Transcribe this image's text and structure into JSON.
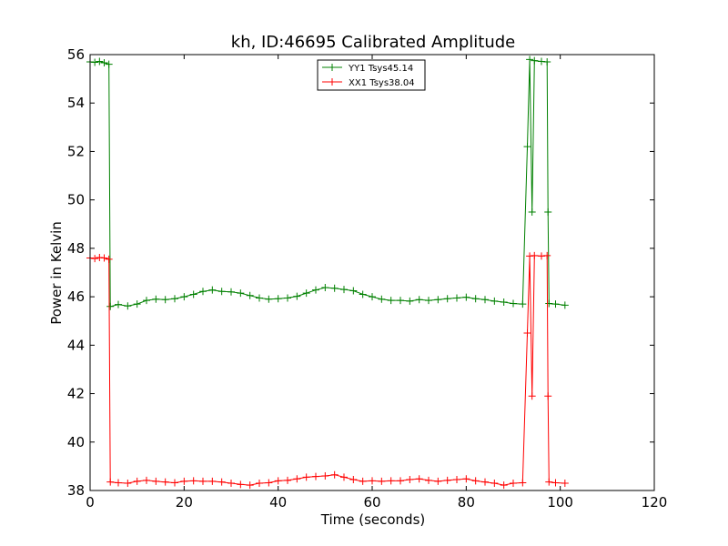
{
  "chart_data": {
    "type": "line",
    "title": "kh, ID:46695 Calibrated Amplitude",
    "xlabel": "Time (seconds)",
    "ylabel": "Power in Kelvin",
    "xlim": [
      0,
      120
    ],
    "ylim": [
      38,
      56
    ],
    "xticks": [
      "0",
      "20",
      "40",
      "60",
      "80",
      "100",
      "120"
    ],
    "yticks": [
      "38",
      "40",
      "42",
      "44",
      "46",
      "48",
      "50",
      "52",
      "54",
      "56"
    ],
    "grid": false,
    "legend_position": "top-center",
    "marker": "+",
    "series": [
      {
        "name": "YY1 Tsys45.14",
        "color": "#008000",
        "points": [
          [
            0,
            55.7
          ],
          [
            1,
            55.68
          ],
          [
            2,
            55.72
          ],
          [
            3,
            55.66
          ],
          [
            4,
            55.6
          ],
          [
            4.3,
            45.6
          ],
          [
            6,
            45.68
          ],
          [
            8,
            45.62
          ],
          [
            10,
            45.7
          ],
          [
            12,
            45.85
          ],
          [
            14,
            45.9
          ],
          [
            16,
            45.88
          ],
          [
            18,
            45.92
          ],
          [
            20,
            46.0
          ],
          [
            22,
            46.1
          ],
          [
            24,
            46.22
          ],
          [
            26,
            46.28
          ],
          [
            28,
            46.22
          ],
          [
            30,
            46.2
          ],
          [
            32,
            46.15
          ],
          [
            34,
            46.05
          ],
          [
            36,
            45.95
          ],
          [
            38,
            45.9
          ],
          [
            40,
            45.92
          ],
          [
            42,
            45.95
          ],
          [
            44,
            46.02
          ],
          [
            46,
            46.15
          ],
          [
            48,
            46.28
          ],
          [
            50,
            46.38
          ],
          [
            52,
            46.35
          ],
          [
            54,
            46.3
          ],
          [
            56,
            46.25
          ],
          [
            58,
            46.1
          ],
          [
            60,
            46.0
          ],
          [
            62,
            45.9
          ],
          [
            64,
            45.85
          ],
          [
            66,
            45.85
          ],
          [
            68,
            45.82
          ],
          [
            70,
            45.88
          ],
          [
            72,
            45.85
          ],
          [
            74,
            45.88
          ],
          [
            76,
            45.92
          ],
          [
            78,
            45.95
          ],
          [
            80,
            45.98
          ],
          [
            82,
            45.92
          ],
          [
            84,
            45.88
          ],
          [
            86,
            45.82
          ],
          [
            88,
            45.78
          ],
          [
            90,
            45.72
          ],
          [
            92,
            45.7
          ],
          [
            93,
            52.2
          ],
          [
            93.5,
            55.8
          ],
          [
            94,
            49.5
          ],
          [
            94.5,
            55.75
          ],
          [
            96,
            55.72
          ],
          [
            97.2,
            55.7
          ],
          [
            97.4,
            49.5
          ],
          [
            97.6,
            45.72
          ],
          [
            99,
            45.7
          ],
          [
            101,
            45.65
          ]
        ]
      },
      {
        "name": "XX1 Tsys38.04",
        "color": "#ff0000",
        "points": [
          [
            0,
            47.6
          ],
          [
            1,
            47.58
          ],
          [
            2,
            47.62
          ],
          [
            3,
            47.6
          ],
          [
            4,
            47.55
          ],
          [
            4.3,
            38.35
          ],
          [
            6,
            38.32
          ],
          [
            8,
            38.3
          ],
          [
            10,
            38.38
          ],
          [
            12,
            38.42
          ],
          [
            14,
            38.38
          ],
          [
            16,
            38.35
          ],
          [
            18,
            38.32
          ],
          [
            20,
            38.38
          ],
          [
            22,
            38.4
          ],
          [
            24,
            38.38
          ],
          [
            26,
            38.38
          ],
          [
            28,
            38.35
          ],
          [
            30,
            38.3
          ],
          [
            32,
            38.25
          ],
          [
            34,
            38.22
          ],
          [
            36,
            38.3
          ],
          [
            38,
            38.32
          ],
          [
            40,
            38.4
          ],
          [
            42,
            38.42
          ],
          [
            44,
            38.48
          ],
          [
            46,
            38.55
          ],
          [
            48,
            38.58
          ],
          [
            50,
            38.6
          ],
          [
            52,
            38.65
          ],
          [
            54,
            38.55
          ],
          [
            56,
            38.45
          ],
          [
            58,
            38.38
          ],
          [
            60,
            38.4
          ],
          [
            62,
            38.38
          ],
          [
            64,
            38.4
          ],
          [
            66,
            38.4
          ],
          [
            68,
            38.45
          ],
          [
            70,
            38.48
          ],
          [
            72,
            38.42
          ],
          [
            74,
            38.38
          ],
          [
            76,
            38.42
          ],
          [
            78,
            38.45
          ],
          [
            80,
            38.48
          ],
          [
            82,
            38.4
          ],
          [
            84,
            38.35
          ],
          [
            86,
            38.3
          ],
          [
            88,
            38.22
          ],
          [
            90,
            38.3
          ],
          [
            92,
            38.32
          ],
          [
            93,
            44.5
          ],
          [
            93.5,
            47.68
          ],
          [
            94,
            41.9
          ],
          [
            94.5,
            47.7
          ],
          [
            96,
            47.68
          ],
          [
            97.2,
            47.7
          ],
          [
            97.4,
            41.9
          ],
          [
            97.6,
            38.35
          ],
          [
            99,
            38.32
          ],
          [
            101,
            38.3
          ]
        ]
      }
    ]
  }
}
